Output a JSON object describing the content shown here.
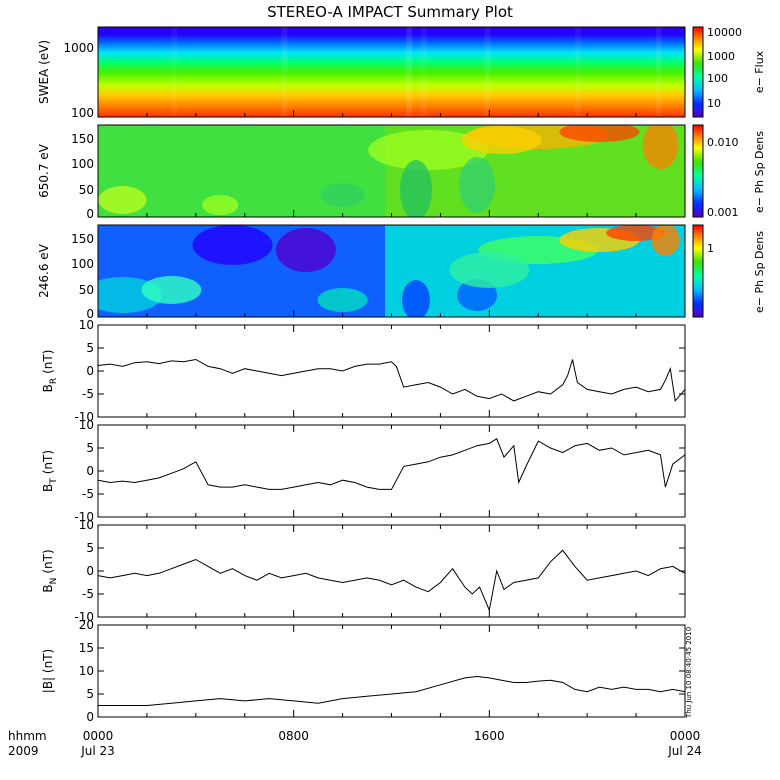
{
  "title": "STEREO-A IMPACT Summary Plot",
  "timestamp": "Thu Jun 10 08:40:45 2010",
  "footer": {
    "left_top": "hhmm",
    "left_bottom": "2009"
  },
  "colors": {
    "trace": "#000000",
    "axis": "#000000"
  },
  "chart_data": [
    {
      "type": "heatmap",
      "ylabel": "SWEA (eV)",
      "yscale": "log",
      "ylim": [
        100,
        2000
      ],
      "yticks": [
        "100",
        "1000"
      ],
      "colorbar_label": "e− Flux",
      "colorbar_scale": "log",
      "colorbar_ticks": [
        "10",
        "100",
        "1000",
        "10000"
      ],
      "colormap": "rainbow",
      "description_rows": "flux highest at low energy (~100 eV) decreasing toward 2000 eV; horizontal banding"
    },
    {
      "type": "heatmap",
      "ylabel": "650.7 eV",
      "ylim": [
        0,
        180
      ],
      "yticks": [
        "0",
        "50",
        "100",
        "150"
      ],
      "colorbar_label": "e− Ph Sp Dens",
      "colorbar_scale": "log",
      "colorbar_ticks": [
        "0.001",
        "0.010"
      ],
      "colormap": "rainbow",
      "boundary_hour": 12.4
    },
    {
      "type": "heatmap",
      "ylabel": "246.6 eV",
      "ylim": [
        0,
        180
      ],
      "yticks": [
        "0",
        "50",
        "100",
        "150"
      ],
      "colorbar_label": "e− Ph Sp Dens",
      "colorbar_scale": "log",
      "colorbar_ticks": [
        "1"
      ],
      "colormap": "rainbow",
      "boundary_hour": 12.4
    },
    {
      "type": "line",
      "ylabel_main": "B",
      "ylabel_sub": "R",
      "ylabel_unit": "(nT)",
      "ylim": [
        -10,
        10
      ],
      "yticks": [
        "-10",
        "-5",
        "0",
        "5",
        "10"
      ],
      "x": [
        0,
        0.5,
        1,
        1.5,
        2,
        2.5,
        3,
        3.5,
        4,
        4.5,
        5,
        5.5,
        6,
        6.5,
        7,
        7.5,
        8,
        8.5,
        9,
        9.5,
        10,
        10.5,
        11,
        11.5,
        12,
        12.2,
        12.5,
        13,
        13.5,
        14,
        14.5,
        15,
        15.5,
        16,
        16.5,
        17,
        17.5,
        18,
        18.5,
        19,
        19.2,
        19.4,
        19.6,
        20,
        20.5,
        21,
        21.5,
        22,
        22.5,
        23,
        23.2,
        23.4,
        23.6,
        24
      ],
      "y": [
        1.2,
        1.5,
        1.0,
        1.8,
        2.0,
        1.6,
        2.2,
        2.0,
        2.5,
        1.0,
        0.5,
        -0.5,
        0.5,
        0.0,
        -0.5,
        -1.0,
        -0.5,
        0.0,
        0.5,
        0.5,
        0.0,
        1.0,
        1.5,
        1.5,
        2.0,
        1.0,
        -3.5,
        -3.0,
        -2.5,
        -3.5,
        -5.0,
        -4.0,
        -5.5,
        -6.0,
        -5.0,
        -6.5,
        -5.5,
        -4.5,
        -5.0,
        -3.0,
        -1.0,
        2.5,
        -2.5,
        -4.0,
        -4.5,
        -5.0,
        -4.0,
        -3.5,
        -4.5,
        -4.0,
        -2.0,
        0.5,
        -6.5,
        -4.0
      ]
    },
    {
      "type": "line",
      "ylabel_main": "B",
      "ylabel_sub": "T",
      "ylabel_unit": "(nT)",
      "ylim": [
        -10,
        10
      ],
      "yticks": [
        "-10",
        "-5",
        "0",
        "5",
        "10"
      ],
      "x": [
        0,
        0.5,
        1,
        1.5,
        2,
        2.5,
        3,
        3.5,
        4,
        4.5,
        5,
        5.5,
        6,
        6.5,
        7,
        7.5,
        8,
        8.5,
        9,
        9.5,
        10,
        10.5,
        11,
        11.5,
        12,
        12.2,
        12.5,
        13,
        13.5,
        14,
        14.5,
        15,
        15.5,
        16,
        16.3,
        16.6,
        17,
        17.2,
        17.5,
        18,
        18.5,
        19,
        19.5,
        20,
        20.5,
        21,
        21.5,
        22,
        22.5,
        23,
        23.2,
        23.5,
        24
      ],
      "y": [
        -2.0,
        -2.5,
        -2.2,
        -2.5,
        -2.0,
        -1.5,
        -0.5,
        0.5,
        2.0,
        -3.0,
        -3.5,
        -3.5,
        -3.0,
        -3.5,
        -4.0,
        -4.0,
        -3.5,
        -3.0,
        -2.5,
        -3.0,
        -2.0,
        -2.5,
        -3.5,
        -4.0,
        -4.0,
        -2.0,
        1.0,
        1.5,
        2.0,
        3.0,
        3.5,
        4.5,
        5.5,
        6.0,
        7.0,
        3.0,
        5.5,
        -2.5,
        1.0,
        6.5,
        5.0,
        4.0,
        5.5,
        6.0,
        4.5,
        5.0,
        3.5,
        4.0,
        4.5,
        3.5,
        -3.5,
        1.5,
        3.5
      ]
    },
    {
      "type": "line",
      "ylabel_main": "B",
      "ylabel_sub": "N",
      "ylabel_unit": "(nT)",
      "ylim": [
        -10,
        10
      ],
      "yticks": [
        "-10",
        "-5",
        "0",
        "5",
        "10"
      ],
      "x": [
        0,
        0.5,
        1,
        1.5,
        2,
        2.5,
        3,
        3.5,
        4,
        4.5,
        5,
        5.5,
        6,
        6.5,
        7,
        7.5,
        8,
        8.5,
        9,
        9.5,
        10,
        10.5,
        11,
        11.5,
        12,
        12.5,
        13,
        13.5,
        14,
        14.5,
        15,
        15.3,
        15.6,
        16,
        16.3,
        16.6,
        17,
        17.5,
        18,
        18.5,
        19,
        19.5,
        20,
        20.5,
        21,
        21.5,
        22,
        22.5,
        23,
        23.5,
        24
      ],
      "y": [
        -1.0,
        -1.5,
        -1.0,
        -0.5,
        -1.0,
        -0.5,
        0.5,
        1.5,
        2.5,
        1.0,
        -0.5,
        0.5,
        -1.0,
        -2.0,
        -0.5,
        -1.5,
        -1.0,
        -0.5,
        -1.5,
        -2.0,
        -2.5,
        -2.0,
        -1.5,
        -2.0,
        -3.0,
        -2.0,
        -3.5,
        -4.5,
        -2.5,
        0.5,
        -3.5,
        -5.0,
        -3.5,
        -8.5,
        0.0,
        -4.0,
        -2.5,
        -2.0,
        -1.5,
        2.0,
        4.5,
        1.0,
        -2.0,
        -1.5,
        -1.0,
        -0.5,
        0.0,
        -1.0,
        0.5,
        1.0,
        -0.5
      ]
    },
    {
      "type": "line",
      "ylabel_main": "|B| (nT)",
      "ylim": [
        0,
        20
      ],
      "yticks": [
        "0",
        "5",
        "10",
        "15",
        "20"
      ],
      "x": [
        0,
        1,
        2,
        3,
        4,
        5,
        6,
        7,
        8,
        9,
        10,
        11,
        12,
        13,
        14,
        15,
        15.5,
        16,
        16.5,
        17,
        17.5,
        18,
        18.5,
        19,
        19.5,
        20,
        20.5,
        21,
        21.5,
        22,
        22.5,
        23,
        23.5,
        24
      ],
      "y": [
        2.5,
        2.5,
        2.5,
        3.0,
        3.5,
        4.0,
        3.5,
        4.0,
        3.5,
        3.0,
        4.0,
        4.5,
        5.0,
        5.5,
        7.0,
        8.5,
        8.8,
        8.5,
        8.0,
        7.5,
        7.5,
        7.8,
        8.0,
        7.5,
        6.0,
        5.5,
        6.5,
        6.0,
        6.5,
        6.0,
        6.0,
        5.5,
        6.0,
        5.5
      ]
    }
  ],
  "xaxis": {
    "ticks": [
      {
        "hour": 0,
        "label": "0000",
        "sublabel": "Jul 23"
      },
      {
        "hour": 8,
        "label": "0800",
        "sublabel": ""
      },
      {
        "hour": 16,
        "label": "1600",
        "sublabel": ""
      },
      {
        "hour": 24,
        "label": "0000",
        "sublabel": "Jul 24"
      }
    ],
    "range": [
      0,
      24
    ]
  }
}
